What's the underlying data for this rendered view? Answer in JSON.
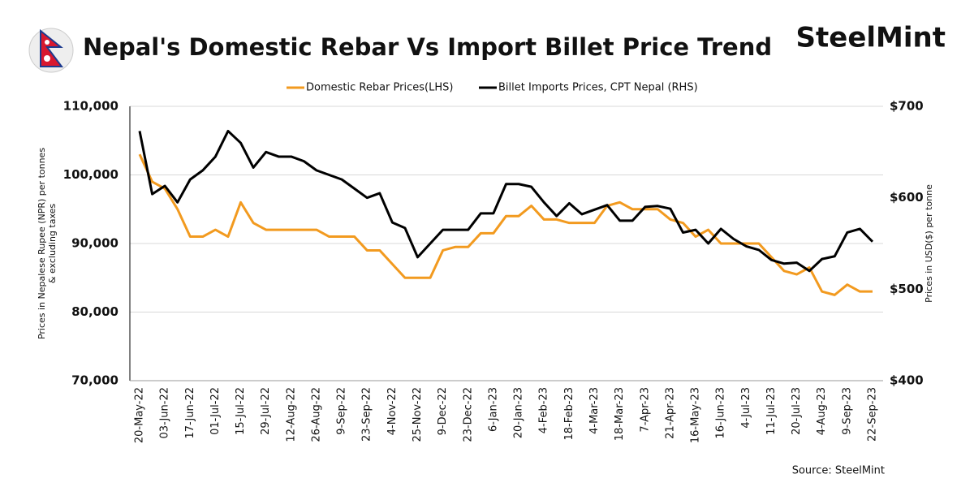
{
  "chart_data": {
    "type": "line",
    "title": "Nepal's Domestic Rebar Vs Import Billet Price Trend",
    "logo": "SteelMint",
    "source": "Source: SteelMint",
    "ylabel": "Prices in Nepalese Rupee (NPR) per tonnes & excluding taxes",
    "y2label": "Prices in USD($) per tonne",
    "categories": [
      "20-May-22",
      null,
      "03-Jun-22",
      null,
      "17-Jun-22",
      null,
      "01-Jul-22",
      null,
      "15-Jul-22",
      null,
      "29-Jul-22",
      null,
      "12-Aug-22",
      null,
      "26-Aug-22",
      null,
      "9-Sep-22",
      null,
      "23-Sep-22",
      null,
      "4-Nov-22",
      null,
      "25-Nov-22",
      null,
      "9-Dec-22",
      null,
      "23-Dec-22",
      null,
      "6-Jan-23",
      null,
      "20-Jan-23",
      null,
      "4-Feb-23",
      null,
      "18-Feb-23",
      null,
      "4-Mar-23",
      null,
      "18-Mar-23",
      null,
      "7-Apr-23",
      null,
      "21-Apr-23",
      null,
      "16-May-23",
      null,
      "16-Jun-23",
      null,
      "4-Jul-23",
      null,
      "11-Jul-23",
      null,
      "20-Jul-23",
      null,
      "4-Aug-23",
      null,
      "9-Sep-23",
      null,
      "22-Sep-23"
    ],
    "series": [
      {
        "name": "Domestic Rebar Prices(LHS)",
        "color": "#f29a1f",
        "values": [
          103000,
          99000,
          98000,
          95000,
          91000,
          91000,
          92000,
          91000,
          96000,
          93000,
          92000,
          92000,
          92000,
          92000,
          92000,
          91000,
          91000,
          91000,
          89000,
          89000,
          87000,
          85000,
          85000,
          85000,
          89000,
          89500,
          89500,
          91500,
          91500,
          94000,
          94000,
          95500,
          93500,
          93500,
          93000,
          93000,
          93000,
          95500,
          96000,
          95000,
          95000,
          95000,
          93500,
          93000,
          91000,
          92000,
          90000,
          90000,
          90000,
          90000,
          88000,
          86000,
          85500,
          86500,
          83000,
          82500,
          84000,
          83000,
          83000
        ]
      },
      {
        "name": "Billet Imports Prices, CPT Nepal (RHS)",
        "color": "#000000",
        "axis": "y2",
        "values": [
          673,
          604,
          613,
          595,
          620,
          630,
          645,
          673,
          660,
          633,
          650,
          645,
          645,
          640,
          630,
          625,
          620,
          610,
          600,
          605,
          573,
          567,
          535,
          550,
          565,
          565,
          565,
          583,
          583,
          615,
          615,
          612,
          595,
          580,
          594,
          582,
          587,
          592,
          575,
          575,
          590,
          591,
          588,
          562,
          565,
          550,
          566,
          555,
          547,
          543,
          532,
          528,
          529,
          520,
          533,
          536,
          562,
          566,
          552
        ]
      }
    ],
    "ylim": [
      70000,
      110000
    ],
    "yticks": [
      {
        "value": 70000,
        "label": "70,000"
      },
      {
        "value": 80000,
        "label": "80,000"
      },
      {
        "value": 90000,
        "label": "90,000"
      },
      {
        "value": 100000,
        "label": "100,000"
      },
      {
        "value": 110000,
        "label": "110,000"
      }
    ],
    "y2lim": [
      400,
      700
    ],
    "y2ticks": [
      {
        "value": 400,
        "label": "$400"
      },
      {
        "value": 500,
        "label": "$500"
      },
      {
        "value": 600,
        "label": "$600"
      },
      {
        "value": 700,
        "label": "$700"
      }
    ],
    "grid": true,
    "legend": "top"
  }
}
